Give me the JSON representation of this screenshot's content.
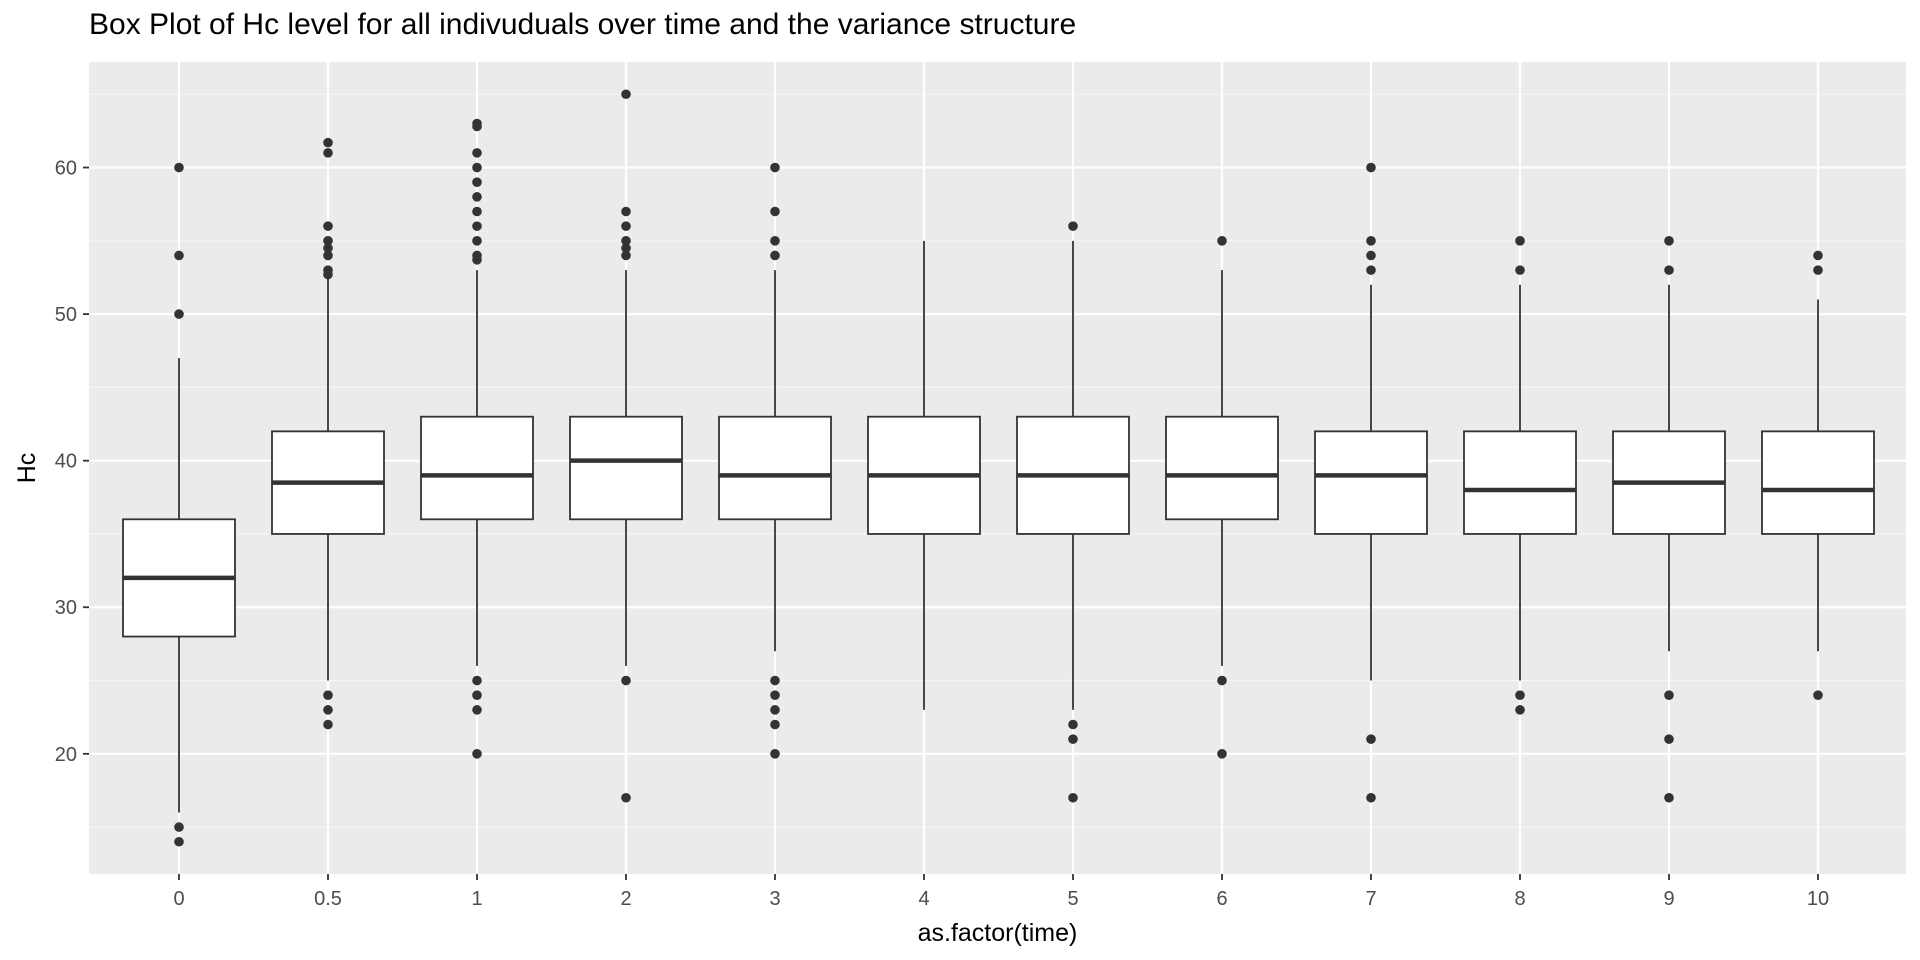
{
  "chart_data": {
    "type": "boxplot",
    "title": "Box Plot of Hc level for all indivuduals over time and the variance structure",
    "xlabel": "as.factor(time)",
    "ylabel": "Hc",
    "categories": [
      "0",
      "0.5",
      "1",
      "2",
      "3",
      "4",
      "5",
      "6",
      "7",
      "8",
      "9",
      "10"
    ],
    "ylim": [
      11.8,
      67.2
    ],
    "y_ticks": [
      20,
      30,
      40,
      50,
      60
    ],
    "grid": true,
    "boxes": [
      {
        "category": "0",
        "whisker_low": 16,
        "q1": 28,
        "median": 32,
        "q3": 36,
        "whisker_high": 47,
        "outliers": [
          14,
          15,
          50,
          54,
          60
        ]
      },
      {
        "category": "0.5",
        "whisker_low": 25,
        "q1": 35,
        "median": 38.5,
        "q3": 42,
        "whisker_high": 52.5,
        "outliers": [
          22,
          23,
          24,
          52.7,
          53,
          54,
          54.5,
          55,
          56,
          61,
          61.7
        ]
      },
      {
        "category": "1",
        "whisker_low": 26,
        "q1": 36,
        "median": 39,
        "q3": 43,
        "whisker_high": 53,
        "outliers": [
          20,
          23,
          24,
          25,
          53.7,
          54,
          55,
          56,
          57,
          58,
          59,
          60,
          61,
          62.8,
          63
        ]
      },
      {
        "category": "2",
        "whisker_low": 26,
        "q1": 36,
        "median": 40,
        "q3": 43,
        "whisker_high": 53,
        "outliers": [
          17,
          25,
          54,
          54.5,
          55,
          56,
          57,
          65
        ]
      },
      {
        "category": "3",
        "whisker_low": 27,
        "q1": 36,
        "median": 39,
        "q3": 43,
        "whisker_high": 53,
        "outliers": [
          20,
          22,
          23,
          24,
          25,
          54,
          55,
          57,
          60
        ]
      },
      {
        "category": "4",
        "whisker_low": 23,
        "q1": 35,
        "median": 39,
        "q3": 43,
        "whisker_high": 55,
        "outliers": []
      },
      {
        "category": "5",
        "whisker_low": 23,
        "q1": 35,
        "median": 39,
        "q3": 43,
        "whisker_high": 55,
        "outliers": [
          17,
          21,
          22,
          56
        ]
      },
      {
        "category": "6",
        "whisker_low": 26,
        "q1": 36,
        "median": 39,
        "q3": 43,
        "whisker_high": 53,
        "outliers": [
          20,
          25,
          55
        ]
      },
      {
        "category": "7",
        "whisker_low": 25,
        "q1": 35,
        "median": 39,
        "q3": 42,
        "whisker_high": 52,
        "outliers": [
          17,
          21,
          53,
          54,
          55,
          60
        ]
      },
      {
        "category": "8",
        "whisker_low": 25,
        "q1": 35,
        "median": 38,
        "q3": 42,
        "whisker_high": 52,
        "outliers": [
          23,
          24,
          53,
          55
        ]
      },
      {
        "category": "9",
        "whisker_low": 27,
        "q1": 35,
        "median": 38.5,
        "q3": 42,
        "whisker_high": 52,
        "outliers": [
          17,
          21,
          24,
          53,
          55
        ]
      },
      {
        "category": "10",
        "whisker_low": 27,
        "q1": 35,
        "median": 38,
        "q3": 42,
        "whisker_high": 51,
        "outliers": [
          24,
          53,
          54
        ]
      }
    ],
    "colors": {
      "panel_background": "#ebebeb",
      "grid_major": "#ffffff",
      "grid_minor": "#f5f5f5",
      "box_fill": "#ffffff",
      "box_stroke": "#333333",
      "outlier": "#333333",
      "tick_text": "#4d4d4d"
    }
  }
}
